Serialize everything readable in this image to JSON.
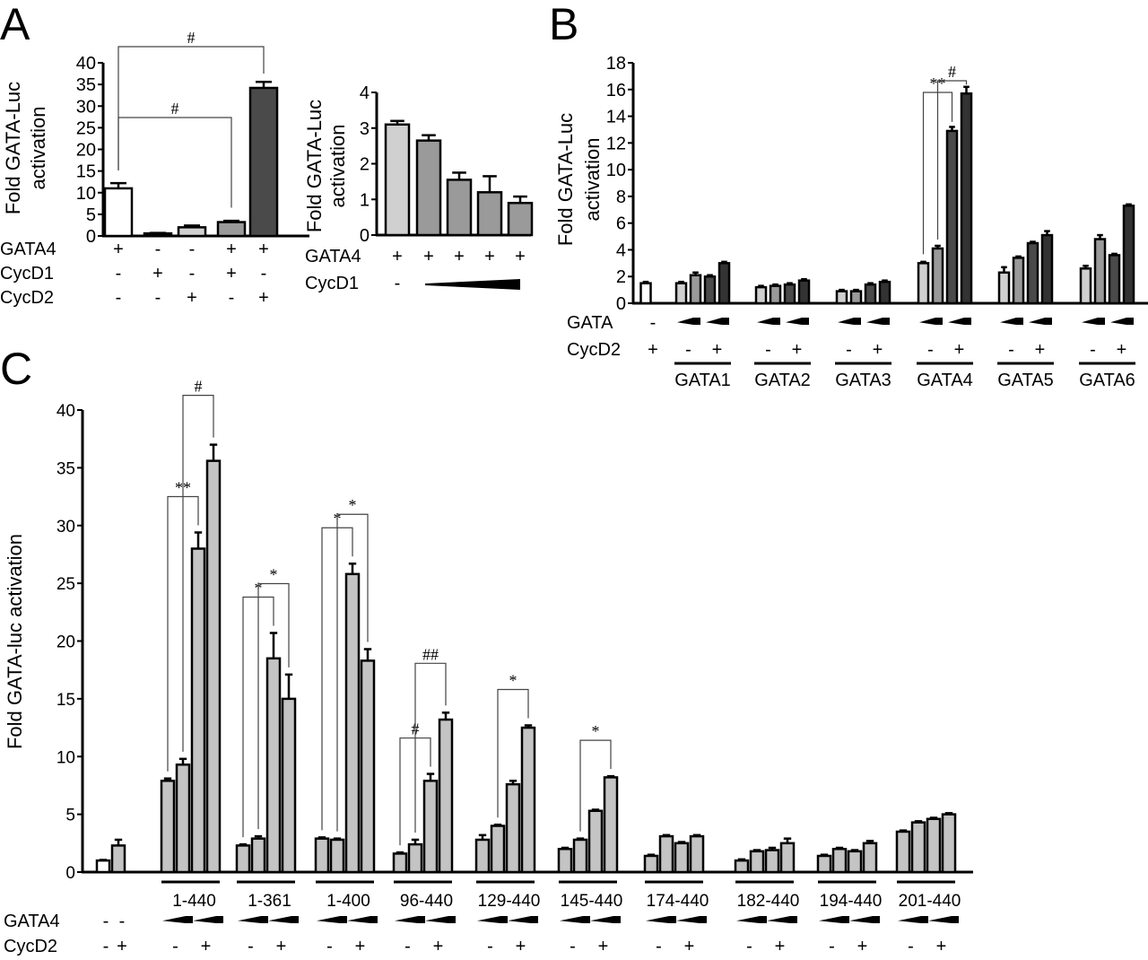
{
  "panel_letters": [
    "A",
    "B",
    "C"
  ],
  "colors": {
    "white": "#ffffff",
    "black": "#000000",
    "light_gray": "#d0d0d0",
    "mid_gray": "#9a9a9a",
    "dark_gray": "#4a4a4a",
    "darker_gray": "#333333",
    "bar_c": "#c4c4c4"
  },
  "chart_data": [
    {
      "panel": "A",
      "type": "bar",
      "ylabel": [
        "Fold GATA-Luc",
        "activation"
      ],
      "ylim": [
        0,
        40
      ],
      "ytick_step": 5,
      "values": [
        11.0,
        0.6,
        2.0,
        3.2,
        34.2
      ],
      "errors": [
        1.2,
        0.1,
        0.4,
        0.3,
        1.4
      ],
      "bar_colors": [
        "white",
        "black",
        "light_gray",
        "mid_gray",
        "dark_gray"
      ],
      "rows": [
        {
          "label": "GATA4",
          "marks": [
            "+",
            "-",
            "-",
            "+",
            "+"
          ]
        },
        {
          "label": "CycD1",
          "marks": [
            "-",
            "+",
            "-",
            "+",
            "-"
          ]
        },
        {
          "label": "CycD2",
          "marks": [
            "-",
            "-",
            "+",
            "-",
            "+"
          ]
        }
      ],
      "annotations": [
        {
          "label": "#",
          "from": 0,
          "to": 4
        },
        {
          "label": "#",
          "from": 0,
          "to": 3
        }
      ]
    },
    {
      "panel": "A",
      "type": "bar",
      "ylabel": [
        "Fold GATA-Luc",
        "activation"
      ],
      "ylim": [
        0,
        4
      ],
      "ytick_step": 1,
      "values": [
        3.1,
        2.65,
        1.55,
        1.2,
        0.9
      ],
      "errors": [
        0.1,
        0.15,
        0.2,
        0.45,
        0.18
      ],
      "bar_colors": [
        "light_gray",
        "mid_gray",
        "mid_gray",
        "mid_gray",
        "mid_gray"
      ],
      "rows": [
        {
          "label": "GATA4",
          "marks": [
            "+",
            "+",
            "+",
            "+",
            "+"
          ]
        },
        {
          "label": "CycD1",
          "marks": [
            "-"
          ],
          "wedge": "increasing"
        }
      ],
      "annotations": []
    },
    {
      "panel": "B",
      "type": "bar",
      "ylabel": [
        "Fold GATA-Luc",
        "activation"
      ],
      "ylim": [
        0,
        18
      ],
      "ytick_step": 2,
      "control": {
        "value": 1.5,
        "error": 0.1,
        "gata": "-",
        "cycd2": "+"
      },
      "groups": [
        {
          "label": "GATA1",
          "values": [
            1.5,
            2.1,
            2.0,
            3.0
          ],
          "errors": [
            0.1,
            0.2,
            0.1,
            0.1
          ]
        },
        {
          "label": "GATA2",
          "values": [
            1.2,
            1.3,
            1.4,
            1.7
          ],
          "errors": [
            0.1,
            0.1,
            0.1,
            0.1
          ]
        },
        {
          "label": "GATA3",
          "values": [
            0.9,
            0.9,
            1.4,
            1.6
          ],
          "errors": [
            0.1,
            0.1,
            0.1,
            0.1
          ]
        },
        {
          "label": "GATA4",
          "values": [
            3.0,
            4.1,
            12.9,
            15.7
          ],
          "errors": [
            0.1,
            0.2,
            0.3,
            0.5
          ]
        },
        {
          "label": "GATA5",
          "values": [
            2.3,
            3.4,
            4.5,
            5.1
          ],
          "errors": [
            0.4,
            0.1,
            0.1,
            0.3
          ]
        },
        {
          "label": "GATA6",
          "values": [
            2.6,
            4.8,
            3.6,
            7.3
          ],
          "errors": [
            0.2,
            0.3,
            0.1,
            0.1
          ]
        }
      ],
      "bar_colors": [
        "light_gray",
        "mid_gray",
        "dark_gray",
        "darker_gray"
      ],
      "control_color": "white",
      "rows": {
        "gata_label": "GATA",
        "cycd2_label": "CycD2",
        "cycd2_marks": [
          "-",
          "+"
        ]
      },
      "annotations": [
        {
          "group": 3,
          "label": "**",
          "from": 0,
          "to": 2
        },
        {
          "group": 3,
          "label": "#",
          "from": 1,
          "to": 3
        }
      ]
    },
    {
      "panel": "C",
      "type": "bar",
      "ylabel": "Fold GATA-luc activation",
      "ylim": [
        0,
        40
      ],
      "ytick_step": 5,
      "control": {
        "values": [
          1.0,
          2.3
        ],
        "errors": [
          0.05,
          0.5
        ],
        "gata4": [
          "-",
          "-"
        ],
        "cycd2": [
          "-",
          "+"
        ]
      },
      "groups": [
        {
          "label": "1-440",
          "values": [
            7.9,
            9.3,
            28.0,
            35.6
          ],
          "errors": [
            0.2,
            0.5,
            1.4,
            1.4
          ]
        },
        {
          "label": "1-361",
          "values": [
            2.3,
            2.9,
            18.5,
            15.0
          ],
          "errors": [
            0.1,
            0.2,
            2.2,
            2.1
          ]
        },
        {
          "label": "1-400",
          "values": [
            2.9,
            2.8,
            25.8,
            18.3
          ],
          "errors": [
            0.1,
            0.1,
            0.9,
            1.0
          ]
        },
        {
          "label": "96-440",
          "values": [
            1.6,
            2.4,
            7.9,
            13.2
          ],
          "errors": [
            0.1,
            0.4,
            0.6,
            0.6
          ]
        },
        {
          "label": "129-440",
          "values": [
            2.8,
            4.0,
            7.6,
            12.5
          ],
          "errors": [
            0.4,
            0.1,
            0.3,
            0.2
          ]
        },
        {
          "label": "145-440",
          "values": [
            2.0,
            2.8,
            5.3,
            8.2
          ],
          "errors": [
            0.1,
            0.1,
            0.1,
            0.1
          ]
        },
        {
          "label": "174-440",
          "values": [
            1.4,
            3.1,
            2.5,
            3.1
          ],
          "errors": [
            0.1,
            0.1,
            0.1,
            0.1
          ]
        },
        {
          "label": "182-440",
          "values": [
            1.0,
            1.8,
            1.9,
            2.5
          ],
          "errors": [
            0.1,
            0.1,
            0.2,
            0.4
          ]
        },
        {
          "label": "194-440",
          "values": [
            1.4,
            2.0,
            1.8,
            2.5
          ],
          "errors": [
            0.1,
            0.1,
            0.1,
            0.2
          ]
        },
        {
          "label": "201-440",
          "values": [
            3.5,
            4.3,
            4.6,
            5.0
          ],
          "errors": [
            0.1,
            0.1,
            0.1,
            0.1
          ]
        }
      ],
      "bar_color": "bar_c",
      "control_colors": [
        "white",
        "bar_c"
      ],
      "rows": {
        "gata4_label": "GATA4",
        "cycd2_label": "CycD2",
        "cycd2_marks": [
          "-",
          "+"
        ]
      },
      "annotations": [
        {
          "group": 0,
          "label": "**",
          "from": 0,
          "to": 2
        },
        {
          "group": 0,
          "label": "#",
          "from": 1,
          "to": 3
        },
        {
          "group": 1,
          "label": "*",
          "from": 0,
          "to": 2
        },
        {
          "group": 1,
          "label": "*",
          "from": 1,
          "to": 3
        },
        {
          "group": 2,
          "label": "*",
          "from": 0,
          "to": 2
        },
        {
          "group": 2,
          "label": "*",
          "from": 1,
          "to": 3
        },
        {
          "group": 3,
          "label": "#",
          "from": 0,
          "to": 2
        },
        {
          "group": 3,
          "label": "##",
          "from": 1,
          "to": 3
        },
        {
          "group": 4,
          "label": "*",
          "from": 1,
          "to": 3
        },
        {
          "group": 5,
          "label": "*",
          "from": 1,
          "to": 3
        }
      ]
    }
  ]
}
